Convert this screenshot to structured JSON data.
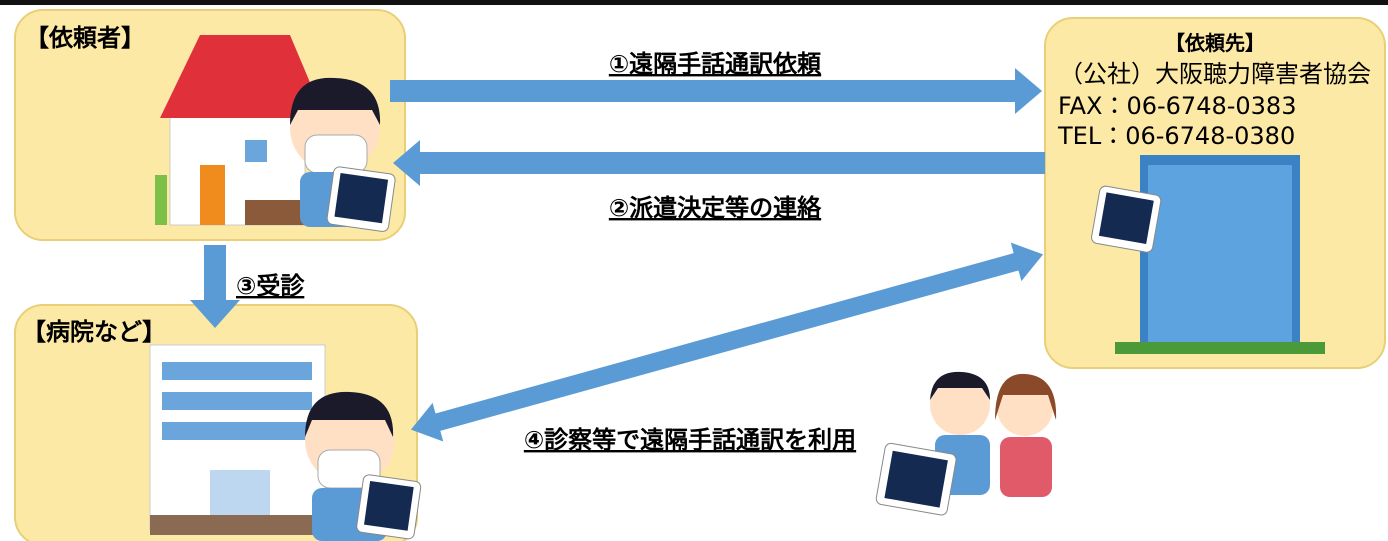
{
  "nodes": [
    {
      "label": "【依頼者】"
    },
    {
      "label": "【病院など】"
    },
    {
      "label": "【依頼先】",
      "org": "（公社）大阪聴力障害者協会",
      "fax": "FAX：06-6748-0383",
      "tel": "TEL：06-6748-0380"
    }
  ],
  "edges": [
    {
      "label": "①遠隔手話通訳依頼"
    },
    {
      "label": "②派遣決定等の連絡"
    },
    {
      "label": "③受診"
    },
    {
      "label": "④診察等で遠隔手話通訳を利用"
    }
  ]
}
